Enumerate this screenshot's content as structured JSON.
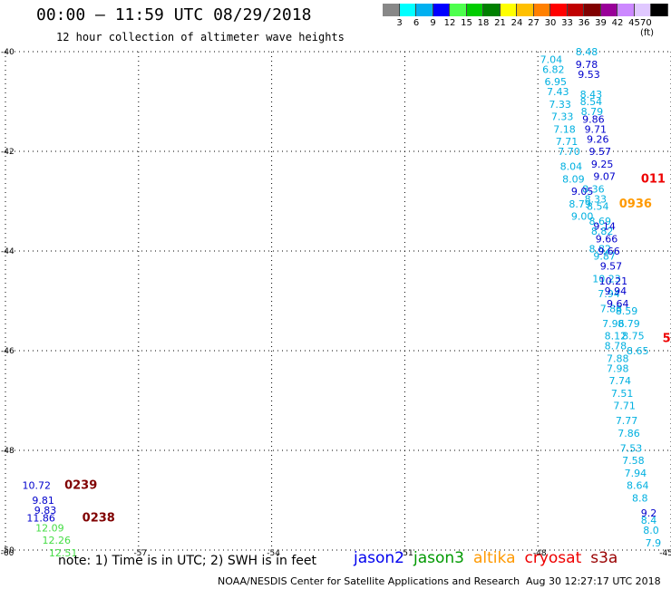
{
  "header": {
    "title": "00:00 — 11:59 UTC 08/29/2018",
    "subtitle": "12 hour collection of altimeter wave heights"
  },
  "legend": {
    "colors": [
      "#888888",
      "#00ffff",
      "#00b0f0",
      "#0000ff",
      "#4dff4d",
      "#00cc00",
      "#008000",
      "#ffff00",
      "#ffc000",
      "#ff8000",
      "#ff0000",
      "#c00000",
      "#800000",
      "#990099",
      "#cc88ff",
      "#e0c8ff",
      "#000000"
    ],
    "labels": [
      "3",
      "6",
      "9",
      "12",
      "15",
      "18",
      "21",
      "24",
      "27",
      "30",
      "33",
      "36",
      "39",
      "42",
      "45",
      "70 (ft)"
    ]
  },
  "note": "note: 1) Time is in UTC; 2) SWH is in feet",
  "satellites": [
    {
      "name": "jason2",
      "color": "#0000ee"
    },
    {
      "name": "jason3",
      "color": "#009900"
    },
    {
      "name": "altika",
      "color": "#ff9900"
    },
    {
      "name": "cryosat",
      "color": "#ee0000"
    },
    {
      "name": "s3a",
      "color": "#990000"
    }
  ],
  "footer": {
    "credit": "NOAA/NESDIS Center for Satellite Applications and Research",
    "timestamp": "Aug 30 12:27:17 UTC 2018"
  },
  "chart_data": {
    "type": "scatter",
    "xlim": [
      -60,
      -45
    ],
    "ylim": [
      -50,
      -40
    ],
    "x_ticks": [
      -60,
      -57,
      -54,
      -51,
      -48,
      -45
    ],
    "y_ticks": [
      -40,
      -42,
      -44,
      -46,
      -48,
      -50
    ],
    "grid": true,
    "colors": {
      "cyan": "#00b0e0",
      "blue": "#0000cc",
      "green": "#44dd44",
      "darkred": "#800000",
      "red": "#ee0000",
      "orange": "#ff9900"
    },
    "series": [
      {
        "color_key": "cyan",
        "points": [
          {
            "lon": -46.9,
            "lat": -40.0,
            "value": "8.48"
          },
          {
            "lon": -47.7,
            "lat": -40.15,
            "value": "7.04"
          },
          {
            "lon": -47.65,
            "lat": -40.35,
            "value": "6.82"
          },
          {
            "lon": -47.6,
            "lat": -40.6,
            "value": "6.95"
          },
          {
            "lon": -47.55,
            "lat": -40.8,
            "value": "7.43"
          },
          {
            "lon": -47.5,
            "lat": -41.05,
            "value": "7.33"
          },
          {
            "lon": -46.8,
            "lat": -40.85,
            "value": "8.43"
          },
          {
            "lon": -46.8,
            "lat": -41.0,
            "value": "8.54"
          },
          {
            "lon": -46.78,
            "lat": -41.2,
            "value": "8.79"
          },
          {
            "lon": -47.45,
            "lat": -41.3,
            "value": "7.33"
          },
          {
            "lon": -47.4,
            "lat": -41.55,
            "value": "7.18"
          },
          {
            "lon": -47.35,
            "lat": -41.8,
            "value": "7.71"
          },
          {
            "lon": -47.3,
            "lat": -42.0,
            "value": "7.70"
          },
          {
            "lon": -47.25,
            "lat": -42.3,
            "value": "8.04"
          },
          {
            "lon": -47.2,
            "lat": -42.55,
            "value": "8.09"
          },
          {
            "lon": -46.75,
            "lat": -42.75,
            "value": "8.36"
          },
          {
            "lon": -46.7,
            "lat": -42.95,
            "value": "8.33"
          },
          {
            "lon": -47.05,
            "lat": -43.05,
            "value": "8.79"
          },
          {
            "lon": -46.65,
            "lat": -43.1,
            "value": "8.54"
          },
          {
            "lon": -47.0,
            "lat": -43.3,
            "value": "9.00"
          },
          {
            "lon": -46.6,
            "lat": -43.4,
            "value": "8.69"
          },
          {
            "lon": -46.55,
            "lat": -43.6,
            "value": "8.82"
          },
          {
            "lon": -46.6,
            "lat": -43.95,
            "value": "8.82"
          },
          {
            "lon": -46.5,
            "lat": -44.1,
            "value": "9.87"
          },
          {
            "lon": -46.45,
            "lat": -44.55,
            "value": "10.23"
          },
          {
            "lon": -46.4,
            "lat": -44.85,
            "value": "7.94"
          },
          {
            "lon": -46.35,
            "lat": -45.15,
            "value": "7.88"
          },
          {
            "lon": -46.0,
            "lat": -45.2,
            "value": "8.59"
          },
          {
            "lon": -46.3,
            "lat": -45.45,
            "value": "7.96"
          },
          {
            "lon": -45.95,
            "lat": -45.45,
            "value": "8.79"
          },
          {
            "lon": -46.25,
            "lat": -45.7,
            "value": "8.12"
          },
          {
            "lon": -45.85,
            "lat": -45.7,
            "value": "8.75"
          },
          {
            "lon": -46.25,
            "lat": -45.9,
            "value": "8.78"
          },
          {
            "lon": -45.75,
            "lat": -46.0,
            "value": "8.65"
          },
          {
            "lon": -46.2,
            "lat": -46.15,
            "value": "7.88"
          },
          {
            "lon": -46.2,
            "lat": -46.35,
            "value": "7.98"
          },
          {
            "lon": -46.15,
            "lat": -46.6,
            "value": "7.74"
          },
          {
            "lon": -46.1,
            "lat": -46.85,
            "value": "7.51"
          },
          {
            "lon": -46.05,
            "lat": -47.1,
            "value": "7.71"
          },
          {
            "lon": -46.0,
            "lat": -47.4,
            "value": "7.77"
          },
          {
            "lon": -45.95,
            "lat": -47.65,
            "value": "7.86"
          },
          {
            "lon": -45.9,
            "lat": -47.95,
            "value": "7.53"
          },
          {
            "lon": -45.85,
            "lat": -48.2,
            "value": "7.58"
          },
          {
            "lon": -45.8,
            "lat": -48.45,
            "value": "7.94"
          },
          {
            "lon": -45.75,
            "lat": -48.7,
            "value": "8.64"
          },
          {
            "lon": -45.7,
            "lat": -48.95,
            "value": "8.8"
          },
          {
            "lon": -45.5,
            "lat": -49.4,
            "value": "8.4"
          },
          {
            "lon": -45.45,
            "lat": -49.6,
            "value": "8.0"
          },
          {
            "lon": -45.4,
            "lat": -49.85,
            "value": "7.9"
          }
        ]
      },
      {
        "color_key": "blue",
        "points": [
          {
            "lon": -46.9,
            "lat": -40.25,
            "value": "9.78"
          },
          {
            "lon": -46.85,
            "lat": -40.45,
            "value": "9.53"
          },
          {
            "lon": -46.75,
            "lat": -41.35,
            "value": "9.86"
          },
          {
            "lon": -46.7,
            "lat": -41.55,
            "value": "9.71"
          },
          {
            "lon": -46.65,
            "lat": -41.75,
            "value": "9.26"
          },
          {
            "lon": -46.6,
            "lat": -42.0,
            "value": "9.57"
          },
          {
            "lon": -46.55,
            "lat": -42.25,
            "value": "9.25"
          },
          {
            "lon": -46.5,
            "lat": -42.5,
            "value": "9.07"
          },
          {
            "lon": -47.0,
            "lat": -42.8,
            "value": "9.05"
          },
          {
            "lon": -46.5,
            "lat": -43.5,
            "value": "9.14"
          },
          {
            "lon": -46.45,
            "lat": -43.75,
            "value": "9.66"
          },
          {
            "lon": -46.4,
            "lat": -44.0,
            "value": "9.66"
          },
          {
            "lon": -46.35,
            "lat": -44.3,
            "value": "9.57"
          },
          {
            "lon": -46.3,
            "lat": -44.6,
            "value": "10.21"
          },
          {
            "lon": -46.25,
            "lat": -44.8,
            "value": "9.94"
          },
          {
            "lon": -46.2,
            "lat": -45.05,
            "value": "9.64"
          },
          {
            "lon": -45.5,
            "lat": -49.25,
            "value": "9.2"
          },
          {
            "lon": -59.3,
            "lat": -48.7,
            "value": "10.72"
          },
          {
            "lon": -59.15,
            "lat": -49.0,
            "value": "9.81"
          },
          {
            "lon": -59.1,
            "lat": -49.2,
            "value": "9.83"
          },
          {
            "lon": -59.2,
            "lat": -49.35,
            "value": "11.86"
          }
        ]
      },
      {
        "color_key": "green",
        "points": [
          {
            "lon": -59.0,
            "lat": -49.55,
            "value": "12.09"
          },
          {
            "lon": -58.85,
            "lat": -49.8,
            "value": "12.26"
          },
          {
            "lon": -58.7,
            "lat": -50.05,
            "value": "12.51"
          }
        ]
      },
      {
        "color_key": "darkred",
        "points": [
          {
            "lon": -58.3,
            "lat": -48.7,
            "value": "0239"
          },
          {
            "lon": -57.9,
            "lat": -49.35,
            "value": "0238"
          }
        ]
      },
      {
        "color_key": "red",
        "points": [
          {
            "lon": -45.4,
            "lat": -42.55,
            "value": "011"
          },
          {
            "lon": -45.1,
            "lat": -45.75,
            "value": "5"
          }
        ]
      },
      {
        "color_key": "orange",
        "points": [
          {
            "lon": -45.8,
            "lat": -43.05,
            "value": "0936"
          }
        ]
      }
    ]
  }
}
